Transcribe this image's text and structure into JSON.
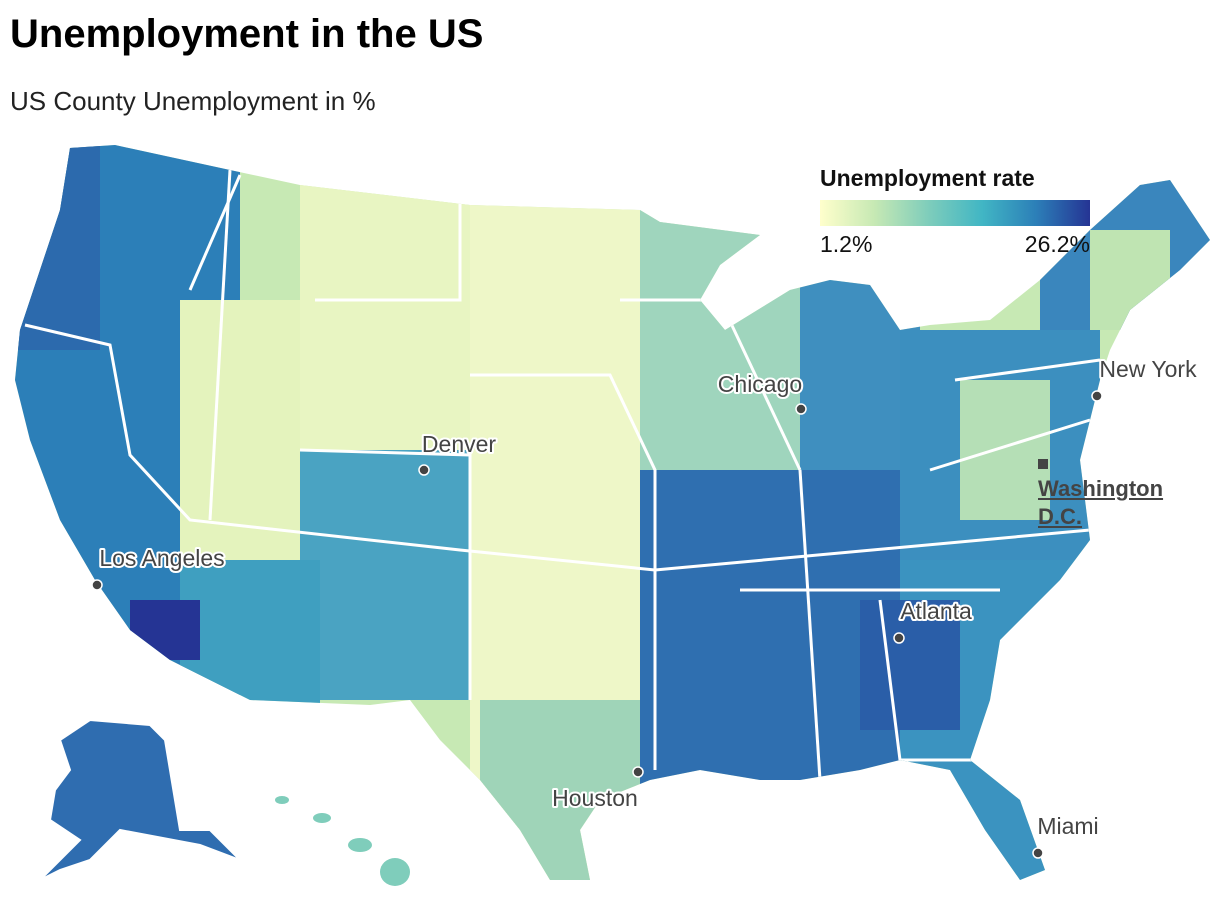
{
  "header": {
    "title": "Unemployment in the US",
    "subtitle": "US County Unemployment in %"
  },
  "legend": {
    "title": "Unemployment rate",
    "colors": [
      "#ffffcc",
      "#c7e9b4",
      "#7fcdbb",
      "#41b6c4",
      "#2c7fb8",
      "#253494"
    ],
    "min": {
      "value": 1.2,
      "label": "1.2%"
    },
    "max": {
      "value": 26.2,
      "label": "26.2%"
    }
  },
  "cities": [
    {
      "name": "Chicago",
      "kind": "dot"
    },
    {
      "name": "Denver",
      "kind": "dot"
    },
    {
      "name": "Los Angeles",
      "kind": "dot"
    },
    {
      "name": "New York",
      "kind": "dot"
    },
    {
      "name": "Washington D.C.",
      "kind": "capital"
    },
    {
      "name": "Atlanta",
      "kind": "dot"
    },
    {
      "name": "Houston",
      "kind": "dot"
    },
    {
      "name": "Miami",
      "kind": "dot"
    }
  ]
}
